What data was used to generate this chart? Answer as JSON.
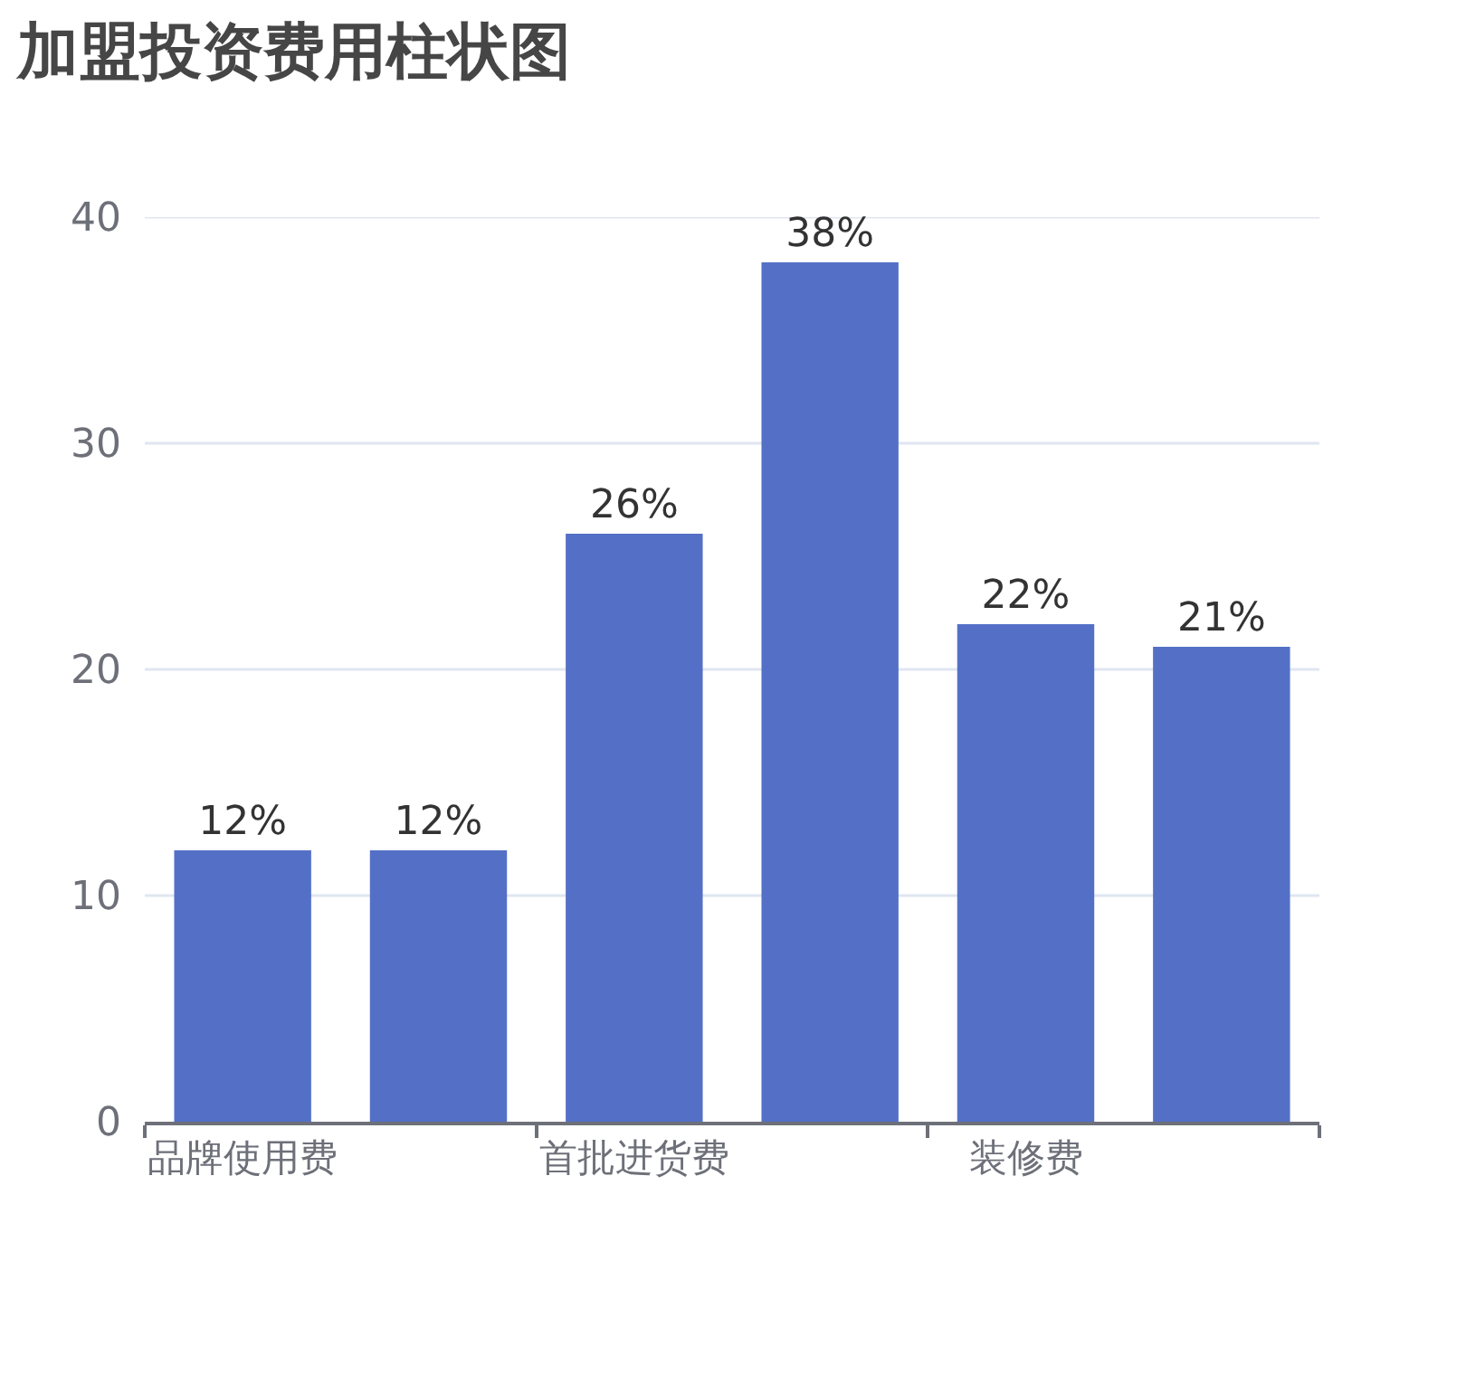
{
  "chart_data": {
    "type": "bar",
    "title": "加盟投资费用柱状图",
    "categories": [
      "品牌使用费",
      null,
      "首批进货费",
      null,
      "装修费",
      null
    ],
    "values": [
      12,
      12,
      26,
      38,
      22,
      21
    ],
    "color": "#5470c6",
    "value_labels": [
      "12%",
      "12%",
      "26%",
      "38%",
      "22%",
      "21%"
    ],
    "ylim": [
      0,
      40
    ],
    "yticks": [
      0,
      10,
      20,
      30,
      40
    ],
    "grid": "y"
  }
}
